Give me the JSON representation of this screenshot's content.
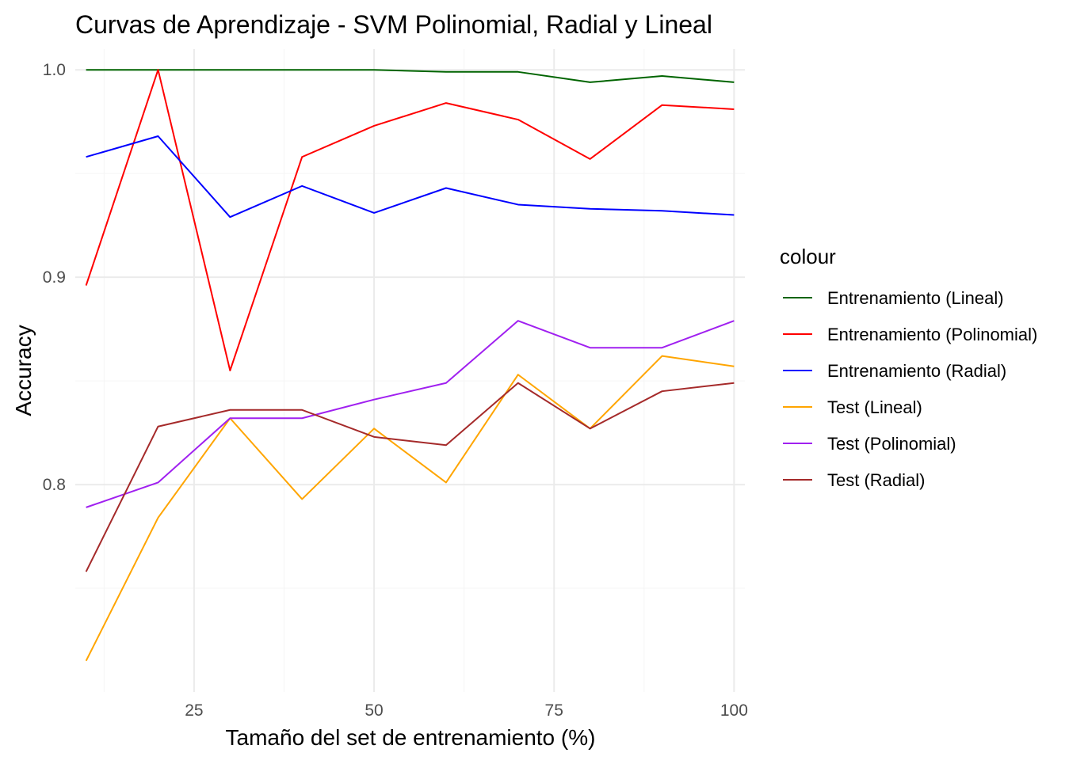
{
  "chart_data": {
    "type": "line",
    "title": "Curvas de Aprendizaje - SVM Polinomial, Radial y Lineal",
    "xlabel": "Tamaño del set de entrenamiento (%)",
    "ylabel": "Accuracy",
    "xlim": [
      8.5,
      101.5
    ],
    "ylim": [
      0.7,
      1.01
    ],
    "x_ticks": [
      25,
      50,
      75,
      100
    ],
    "x_tick_labels": [
      "25",
      "50",
      "75",
      "100"
    ],
    "x_minor_ticks": [
      12.5,
      37.5,
      62.5,
      87.5
    ],
    "y_ticks": [
      0.8,
      0.9,
      1.0
    ],
    "y_tick_labels": [
      "0.8",
      "0.9",
      "1.0"
    ],
    "y_minor_ticks": [
      0.75,
      0.85,
      0.95
    ],
    "grid": true,
    "legend_title": "colour",
    "legend_position": "right",
    "x": [
      10,
      20,
      30,
      40,
      50,
      60,
      70,
      80,
      90,
      100
    ],
    "series": [
      {
        "name": "Entrenamiento (Lineal)",
        "color": "#006400",
        "values": [
          1.0,
          1.0,
          1.0,
          1.0,
          1.0,
          0.999,
          0.999,
          0.994,
          0.997,
          0.994
        ]
      },
      {
        "name": "Entrenamiento (Polinomial)",
        "color": "#ff0000",
        "values": [
          0.896,
          1.0,
          0.855,
          0.958,
          0.973,
          0.984,
          0.976,
          0.957,
          0.983,
          0.981
        ]
      },
      {
        "name": "Entrenamiento (Radial)",
        "color": "#0000ff",
        "values": [
          0.958,
          0.968,
          0.929,
          0.944,
          0.931,
          0.943,
          0.935,
          0.933,
          0.932,
          0.93
        ]
      },
      {
        "name": "Test (Lineal)",
        "color": "#ffa500",
        "values": [
          0.715,
          0.784,
          0.832,
          0.793,
          0.827,
          0.801,
          0.853,
          0.827,
          0.862,
          0.857
        ]
      },
      {
        "name": "Test (Polinomial)",
        "color": "#a020f0",
        "values": [
          0.789,
          0.801,
          0.832,
          0.832,
          0.841,
          0.849,
          0.879,
          0.866,
          0.866,
          0.879
        ]
      },
      {
        "name": "Test (Radial)",
        "color": "#a52a2a",
        "values": [
          0.758,
          0.828,
          0.836,
          0.836,
          0.823,
          0.819,
          0.849,
          0.827,
          0.845,
          0.849
        ]
      }
    ]
  }
}
